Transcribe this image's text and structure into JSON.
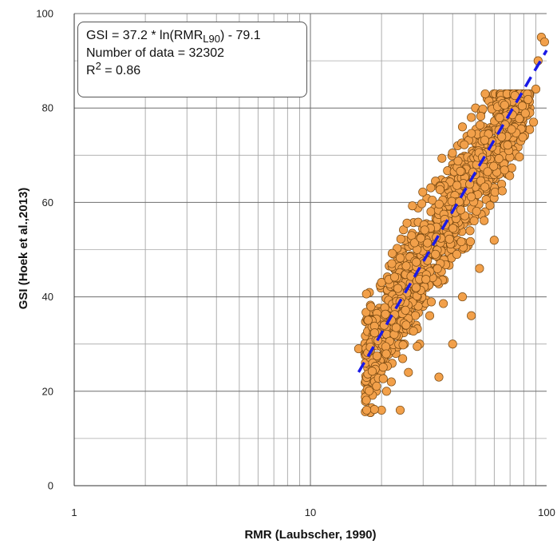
{
  "chart_data": {
    "type": "scatter",
    "xlabel": "RMR (Laubscher, 1990)",
    "ylabel": "GSI (Hoek et al.,2013)",
    "x_scale": "log",
    "xlim": [
      1,
      100
    ],
    "ylim": [
      0,
      100
    ],
    "x_ticks": [
      "1",
      "10",
      "100"
    ],
    "y_ticks": [
      "0",
      "20",
      "40",
      "60",
      "80",
      "100"
    ],
    "grid": true,
    "annotation": {
      "eq_prefix": "GSI = 37.2 * ln(RMR",
      "eq_sub": "L90",
      "eq_suffix": ") - 79.1",
      "count_line": "Number of data = 32302",
      "r2_prefix": "R",
      "r2_sup": "2",
      "r2_suffix": " = 0.86"
    },
    "fit": {
      "a": 37.2,
      "b": -79.1,
      "x_range": [
        16,
        100
      ],
      "color": "#1a1ae6",
      "style": "dashed"
    },
    "points": {
      "color": "#f2a04a",
      "edge_color": "#7a4a12",
      "count": 32302,
      "sample": [
        [
          16,
          29
        ],
        [
          17,
          28
        ],
        [
          18,
          38
        ],
        [
          18,
          25
        ],
        [
          19,
          20
        ],
        [
          19,
          24
        ],
        [
          20,
          16
        ],
        [
          20,
          23
        ],
        [
          20,
          30
        ],
        [
          21,
          20
        ],
        [
          21,
          26
        ],
        [
          22,
          22
        ],
        [
          22,
          33
        ],
        [
          23,
          28
        ],
        [
          24,
          16
        ],
        [
          24,
          36
        ],
        [
          25,
          30
        ],
        [
          26,
          38
        ],
        [
          26,
          24
        ],
        [
          27,
          40
        ],
        [
          28,
          34
        ],
        [
          28,
          44
        ],
        [
          29,
          30
        ],
        [
          30,
          48
        ],
        [
          30,
          38
        ],
        [
          31,
          42
        ],
        [
          32,
          52
        ],
        [
          32,
          36
        ],
        [
          33,
          46
        ],
        [
          34,
          56
        ],
        [
          35,
          50
        ],
        [
          35,
          23
        ],
        [
          36,
          60
        ],
        [
          37,
          54
        ],
        [
          38,
          64
        ],
        [
          38,
          48
        ],
        [
          39,
          58
        ],
        [
          40,
          68
        ],
        [
          40,
          30
        ],
        [
          41,
          62
        ],
        [
          42,
          72
        ],
        [
          42,
          52
        ],
        [
          43,
          66
        ],
        [
          44,
          76
        ],
        [
          44,
          40
        ],
        [
          45,
          60
        ],
        [
          46,
          74
        ],
        [
          47,
          56
        ],
        [
          48,
          78
        ],
        [
          48,
          36
        ],
        [
          50,
          70
        ],
        [
          50,
          80
        ],
        [
          52,
          64
        ],
        [
          52,
          46
        ],
        [
          54,
          76
        ],
        [
          55,
          58
        ],
        [
          56,
          82
        ],
        [
          58,
          70
        ],
        [
          60,
          80
        ],
        [
          60,
          52
        ],
        [
          63,
          74
        ],
        [
          65,
          82
        ],
        [
          68,
          66
        ],
        [
          70,
          80
        ],
        [
          72,
          76
        ],
        [
          75,
          82
        ],
        [
          78,
          78
        ],
        [
          80,
          82
        ],
        [
          85,
          80
        ],
        [
          90,
          84
        ],
        [
          95,
          95
        ],
        [
          98,
          94
        ],
        [
          92,
          90
        ],
        [
          88,
          77
        ]
      ]
    }
  }
}
